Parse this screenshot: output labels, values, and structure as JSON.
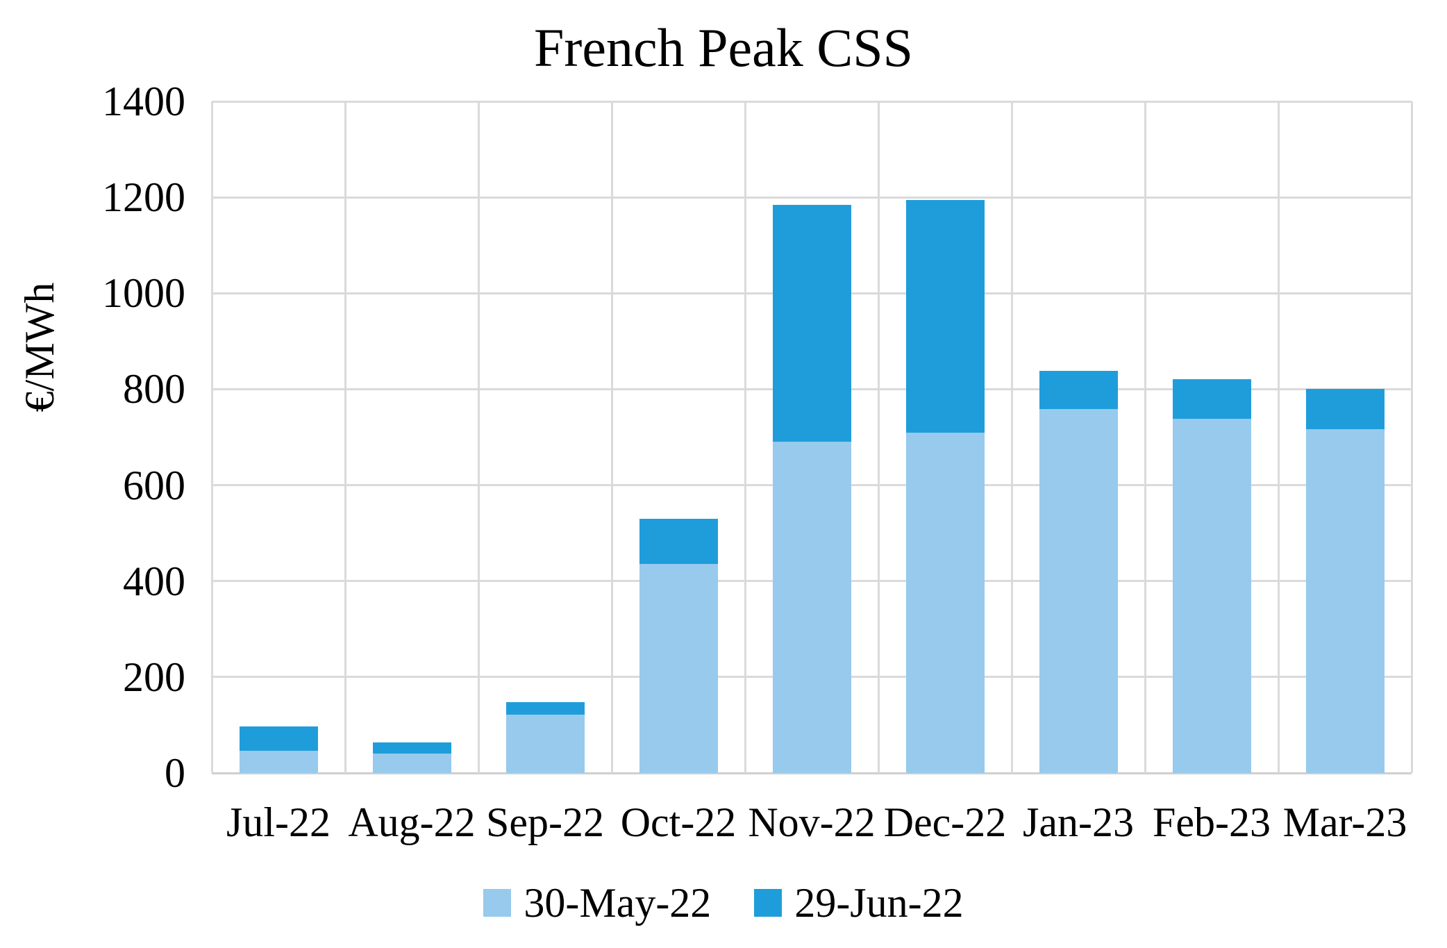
{
  "title": "French Peak CSS",
  "y_axis": {
    "label": "€/MWh"
  },
  "chart_data": {
    "type": "bar",
    "stacked": true,
    "title": "French Peak CSS",
    "xlabel": "",
    "ylabel": "€/MWh",
    "ylim": [
      0,
      1400
    ],
    "ytick_step": 200,
    "grid": true,
    "legend_position": "bottom",
    "categories": [
      "Jul-22",
      "Aug-22",
      "Sep-22",
      "Oct-22",
      "Nov-22",
      "Dec-22",
      "Jan-23",
      "Feb-23",
      "Mar-23"
    ],
    "series": [
      {
        "name": "30-May-22",
        "color": "#97CAEC",
        "values": [
          47,
          40,
          122,
          436,
          690,
          710,
          758,
          739,
          717
        ]
      },
      {
        "name": "29-Jun-22",
        "color": "#1F9DDB",
        "values": [
          50,
          24,
          26,
          94,
          495,
          485,
          81,
          82,
          84
        ]
      }
    ],
    "stacked_totals": [
      97,
      64,
      148,
      530,
      1185,
      1195,
      839,
      821,
      801
    ]
  },
  "colors": {
    "gridline": "#dadada",
    "axis_line": "#cfcfcf",
    "text": "#000000",
    "background": "#ffffff"
  }
}
